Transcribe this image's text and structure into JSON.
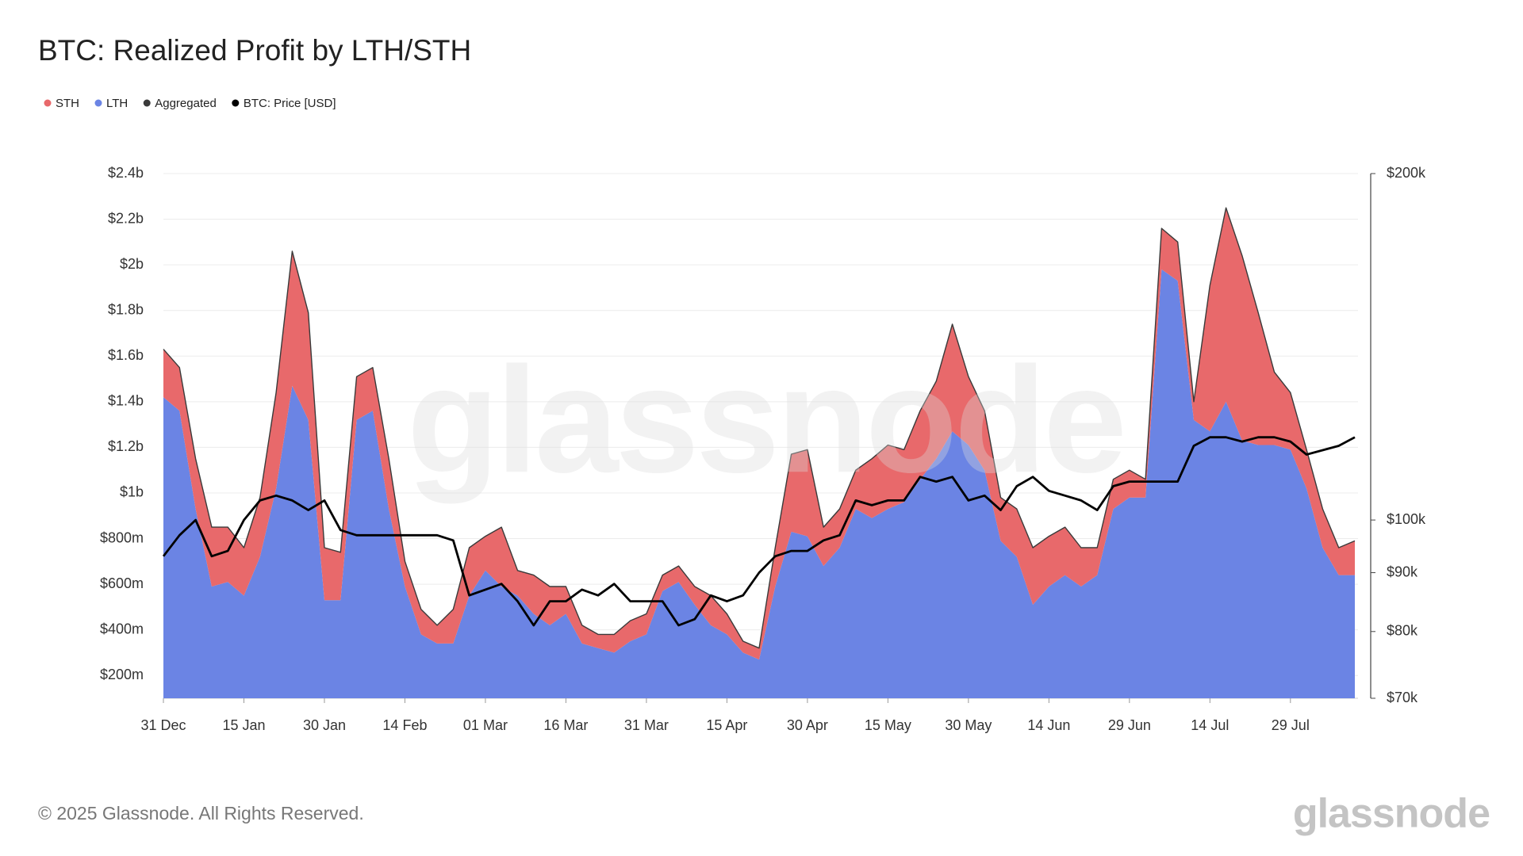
{
  "chart_data": {
    "type": "stacked-area",
    "title": "BTC: Realized Profit by LTH/STH",
    "categories": [
      "31 Dec",
      null,
      null,
      null,
      null,
      "15 Jan",
      null,
      null,
      null,
      null,
      "30 Jan",
      null,
      null,
      null,
      null,
      "14 Feb",
      null,
      null,
      null,
      null,
      "01 Mar",
      null,
      null,
      null,
      null,
      "16 Mar",
      null,
      null,
      null,
      null,
      "31 Mar",
      null,
      null,
      null,
      null,
      "15 Apr",
      null,
      null,
      null,
      null,
      "30 Apr",
      null,
      null,
      null,
      null,
      "15 May",
      null,
      null,
      null,
      null,
      "30 May",
      null,
      null,
      null,
      null,
      "14 Jun",
      null,
      null,
      null,
      null,
      "29 Jun",
      null,
      null,
      null,
      null,
      "14 Jul",
      null,
      null,
      null,
      null,
      "29 Jul",
      null,
      null,
      null,
      null
    ],
    "series": [
      {
        "name": "STH",
        "kind": "area",
        "color": "#e8696b",
        "values": [
          0.21,
          0.19,
          0.22,
          0.26,
          0.24,
          0.21,
          0.26,
          0.42,
          0.59,
          0.47,
          0.23,
          0.21,
          0.19,
          0.19,
          0.22,
          0.11,
          0.11,
          0.08,
          0.15,
          0.21,
          0.15,
          0.26,
          0.11,
          0.17,
          0.17,
          0.12,
          0.08,
          0.06,
          0.08,
          0.09,
          0.09,
          0.07,
          0.07,
          0.08,
          0.13,
          0.09,
          0.05,
          0.05,
          0.17,
          0.34,
          0.38,
          0.17,
          0.17,
          0.17,
          0.26,
          0.28,
          0.23,
          0.3,
          0.34,
          0.47,
          0.3,
          0.26,
          0.19,
          0.21,
          0.25,
          0.22,
          0.21,
          0.17,
          0.12,
          0.13,
          0.12,
          0.08,
          0.18,
          0.17,
          0.08,
          0.64,
          0.85,
          0.81,
          0.58,
          0.32,
          0.25,
          0.17,
          0.17,
          0.12,
          0.15
        ]
      },
      {
        "name": "LTH",
        "kind": "area",
        "color": "#6b84e4",
        "values": [
          1.42,
          1.36,
          0.93,
          0.59,
          0.61,
          0.55,
          0.72,
          1.02,
          1.47,
          1.32,
          0.53,
          0.53,
          1.32,
          1.36,
          0.93,
          0.59,
          0.38,
          0.34,
          0.34,
          0.55,
          0.66,
          0.59,
          0.55,
          0.47,
          0.42,
          0.47,
          0.34,
          0.32,
          0.3,
          0.35,
          0.38,
          0.57,
          0.61,
          0.51,
          0.42,
          0.38,
          0.3,
          0.27,
          0.59,
          0.83,
          0.81,
          0.68,
          0.76,
          0.93,
          0.89,
          0.93,
          0.96,
          1.06,
          1.15,
          1.27,
          1.21,
          1.1,
          0.79,
          0.72,
          0.51,
          0.59,
          0.64,
          0.59,
          0.64,
          0.93,
          0.98,
          0.98,
          1.98,
          1.93,
          1.32,
          1.27,
          1.4,
          1.23,
          1.21,
          1.21,
          1.19,
          1.02,
          0.76,
          0.64,
          0.64
        ]
      },
      {
        "name": "Aggregated",
        "kind": "line",
        "color": "#3a3a3a",
        "values": [
          1.63,
          1.55,
          1.15,
          0.85,
          0.85,
          0.76,
          0.98,
          1.44,
          2.06,
          1.79,
          0.76,
          0.74,
          1.51,
          1.55,
          1.15,
          0.7,
          0.49,
          0.42,
          0.49,
          0.76,
          0.81,
          0.85,
          0.66,
          0.64,
          0.59,
          0.59,
          0.42,
          0.38,
          0.38,
          0.44,
          0.47,
          0.64,
          0.68,
          0.59,
          0.55,
          0.47,
          0.35,
          0.32,
          0.76,
          1.17,
          1.19,
          0.85,
          0.93,
          1.1,
          1.15,
          1.21,
          1.19,
          1.36,
          1.49,
          1.74,
          1.51,
          1.36,
          0.98,
          0.93,
          0.76,
          0.81,
          0.85,
          0.76,
          0.76,
          1.06,
          1.1,
          1.06,
          2.16,
          2.1,
          1.4,
          1.91,
          2.25,
          2.04,
          1.79,
          1.53,
          1.44,
          1.19,
          0.93,
          0.76,
          0.79
        ]
      },
      {
        "name": "BTC: Price [USD]",
        "kind": "line",
        "axis": "y2",
        "color": "#000000",
        "values": [
          93000,
          97000,
          100000,
          93000,
          94000,
          100000,
          104000,
          105000,
          104000,
          102000,
          104000,
          98000,
          97000,
          97000,
          97000,
          97000,
          97000,
          97000,
          96000,
          86000,
          87000,
          88000,
          85000,
          81000,
          85000,
          85000,
          87000,
          86000,
          88000,
          85000,
          85000,
          85000,
          81000,
          82000,
          86000,
          85000,
          86000,
          90000,
          93000,
          94000,
          94000,
          96000,
          97000,
          104000,
          103000,
          104000,
          104000,
          109000,
          108000,
          109000,
          104000,
          105000,
          102000,
          107000,
          109000,
          106000,
          105000,
          104000,
          102000,
          107000,
          108000,
          108000,
          108000,
          108000,
          116000,
          118000,
          118000,
          117000,
          118000,
          118000,
          117000,
          114000,
          115000,
          116000,
          118000
        ]
      }
    ],
    "ylim": [
      0.1,
      2.4
    ],
    "yticks": [
      {
        "value": 0.2,
        "label": "$200m"
      },
      {
        "value": 0.4,
        "label": "$400m"
      },
      {
        "value": 0.6,
        "label": "$600m"
      },
      {
        "value": 0.8,
        "label": "$800m"
      },
      {
        "value": 1,
        "label": "$1b"
      },
      {
        "value": 1.2,
        "label": "$1.2b"
      },
      {
        "value": 1.4,
        "label": "$1.4b"
      },
      {
        "value": 1.6,
        "label": "$1.6b"
      },
      {
        "value": 1.8,
        "label": "$1.8b"
      },
      {
        "value": 2,
        "label": "$2b"
      },
      {
        "value": 2.2,
        "label": "$2.2b"
      },
      {
        "value": 2.4,
        "label": "$2.4b"
      }
    ],
    "y2lim": [
      70000,
      200000
    ],
    "y2_scale": "log",
    "y2ticks": [
      {
        "value": 70000,
        "label": "$70k"
      },
      {
        "value": 80000,
        "label": "$80k"
      },
      {
        "value": 90000,
        "label": "$90k"
      },
      {
        "value": 100000,
        "label": "$100k"
      },
      {
        "value": 200000,
        "label": "$200k"
      }
    ],
    "grid": true,
    "legend": "top-left",
    "watermark": "glassnode",
    "copyright": "© 2025 Glassnode. All Rights Reserved.",
    "logo": "glassnode"
  }
}
